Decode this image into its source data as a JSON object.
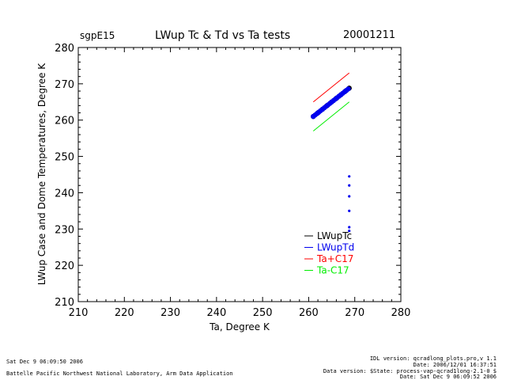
{
  "header": {
    "site": "sgpE15",
    "title": "LWup Tc & Td vs Ta tests",
    "date": "20001211"
  },
  "chart_data": {
    "type": "scatter",
    "xlabel": "Ta, Degree K",
    "ylabel": "LWup Case and Dome Temperatures, Degree K",
    "xlim": [
      210,
      280
    ],
    "ylim": [
      210,
      280
    ],
    "xticks": [
      "210",
      "220",
      "230",
      "240",
      "250",
      "260",
      "270",
      "280"
    ],
    "yticks": [
      "210",
      "220",
      "230",
      "240",
      "250",
      "260",
      "270",
      "280"
    ],
    "grid": false,
    "legend_position": "bottom-right",
    "series": [
      {
        "name": "LWupTc",
        "color": "#000000",
        "style": "points",
        "x": [
          261.0,
          262.0,
          263.0,
          264.0,
          265.0,
          266.0,
          267.0,
          268.0,
          268.8
        ],
        "y": [
          261.0,
          262.0,
          263.0,
          264.0,
          265.0,
          266.0,
          267.0,
          268.0,
          268.8
        ]
      },
      {
        "name": "LWupTd",
        "color": "#0000ee",
        "style": "points",
        "x": [
          261.0,
          261.4,
          261.8,
          262.2,
          262.6,
          263.0,
          263.4,
          263.8,
          264.2,
          264.6,
          265.0,
          265.4,
          265.8,
          266.2,
          266.6,
          267.0,
          267.4,
          267.8,
          268.2,
          268.6,
          268.8,
          268.8,
          268.8,
          268.8,
          268.8,
          268.8
        ],
        "y": [
          261.0,
          261.4,
          261.8,
          262.2,
          262.6,
          263.0,
          263.4,
          263.8,
          264.2,
          264.6,
          265.0,
          265.4,
          265.8,
          266.2,
          266.6,
          267.0,
          267.4,
          267.8,
          268.2,
          268.6,
          244.5,
          242.0,
          239.0,
          235.0,
          230.5,
          229.5
        ]
      },
      {
        "name": "Ta+C17",
        "color": "#ff0000",
        "style": "line",
        "x": [
          261.0,
          268.8
        ],
        "y": [
          265.0,
          273.0
        ]
      },
      {
        "name": "Ta-C17",
        "color": "#00ee00",
        "style": "line",
        "x": [
          261.0,
          268.8
        ],
        "y": [
          257.0,
          265.0
        ]
      }
    ]
  },
  "footer": {
    "run_time": "Sat Dec  9 06:09:50 2006",
    "institution": "Battelle Pacific Northwest National Laboratory, Arm Data Application",
    "idl_version": "IDL version: qcradlong_plots.pro,v 1.1",
    "file_date": "Date: 2006/12/01 16:37:51",
    "data_version": "Data version: $State: process-vap-qcrad1long-2.1-0 $",
    "data_date": "Date: Sat Dec  9 06:09:52 2006"
  }
}
